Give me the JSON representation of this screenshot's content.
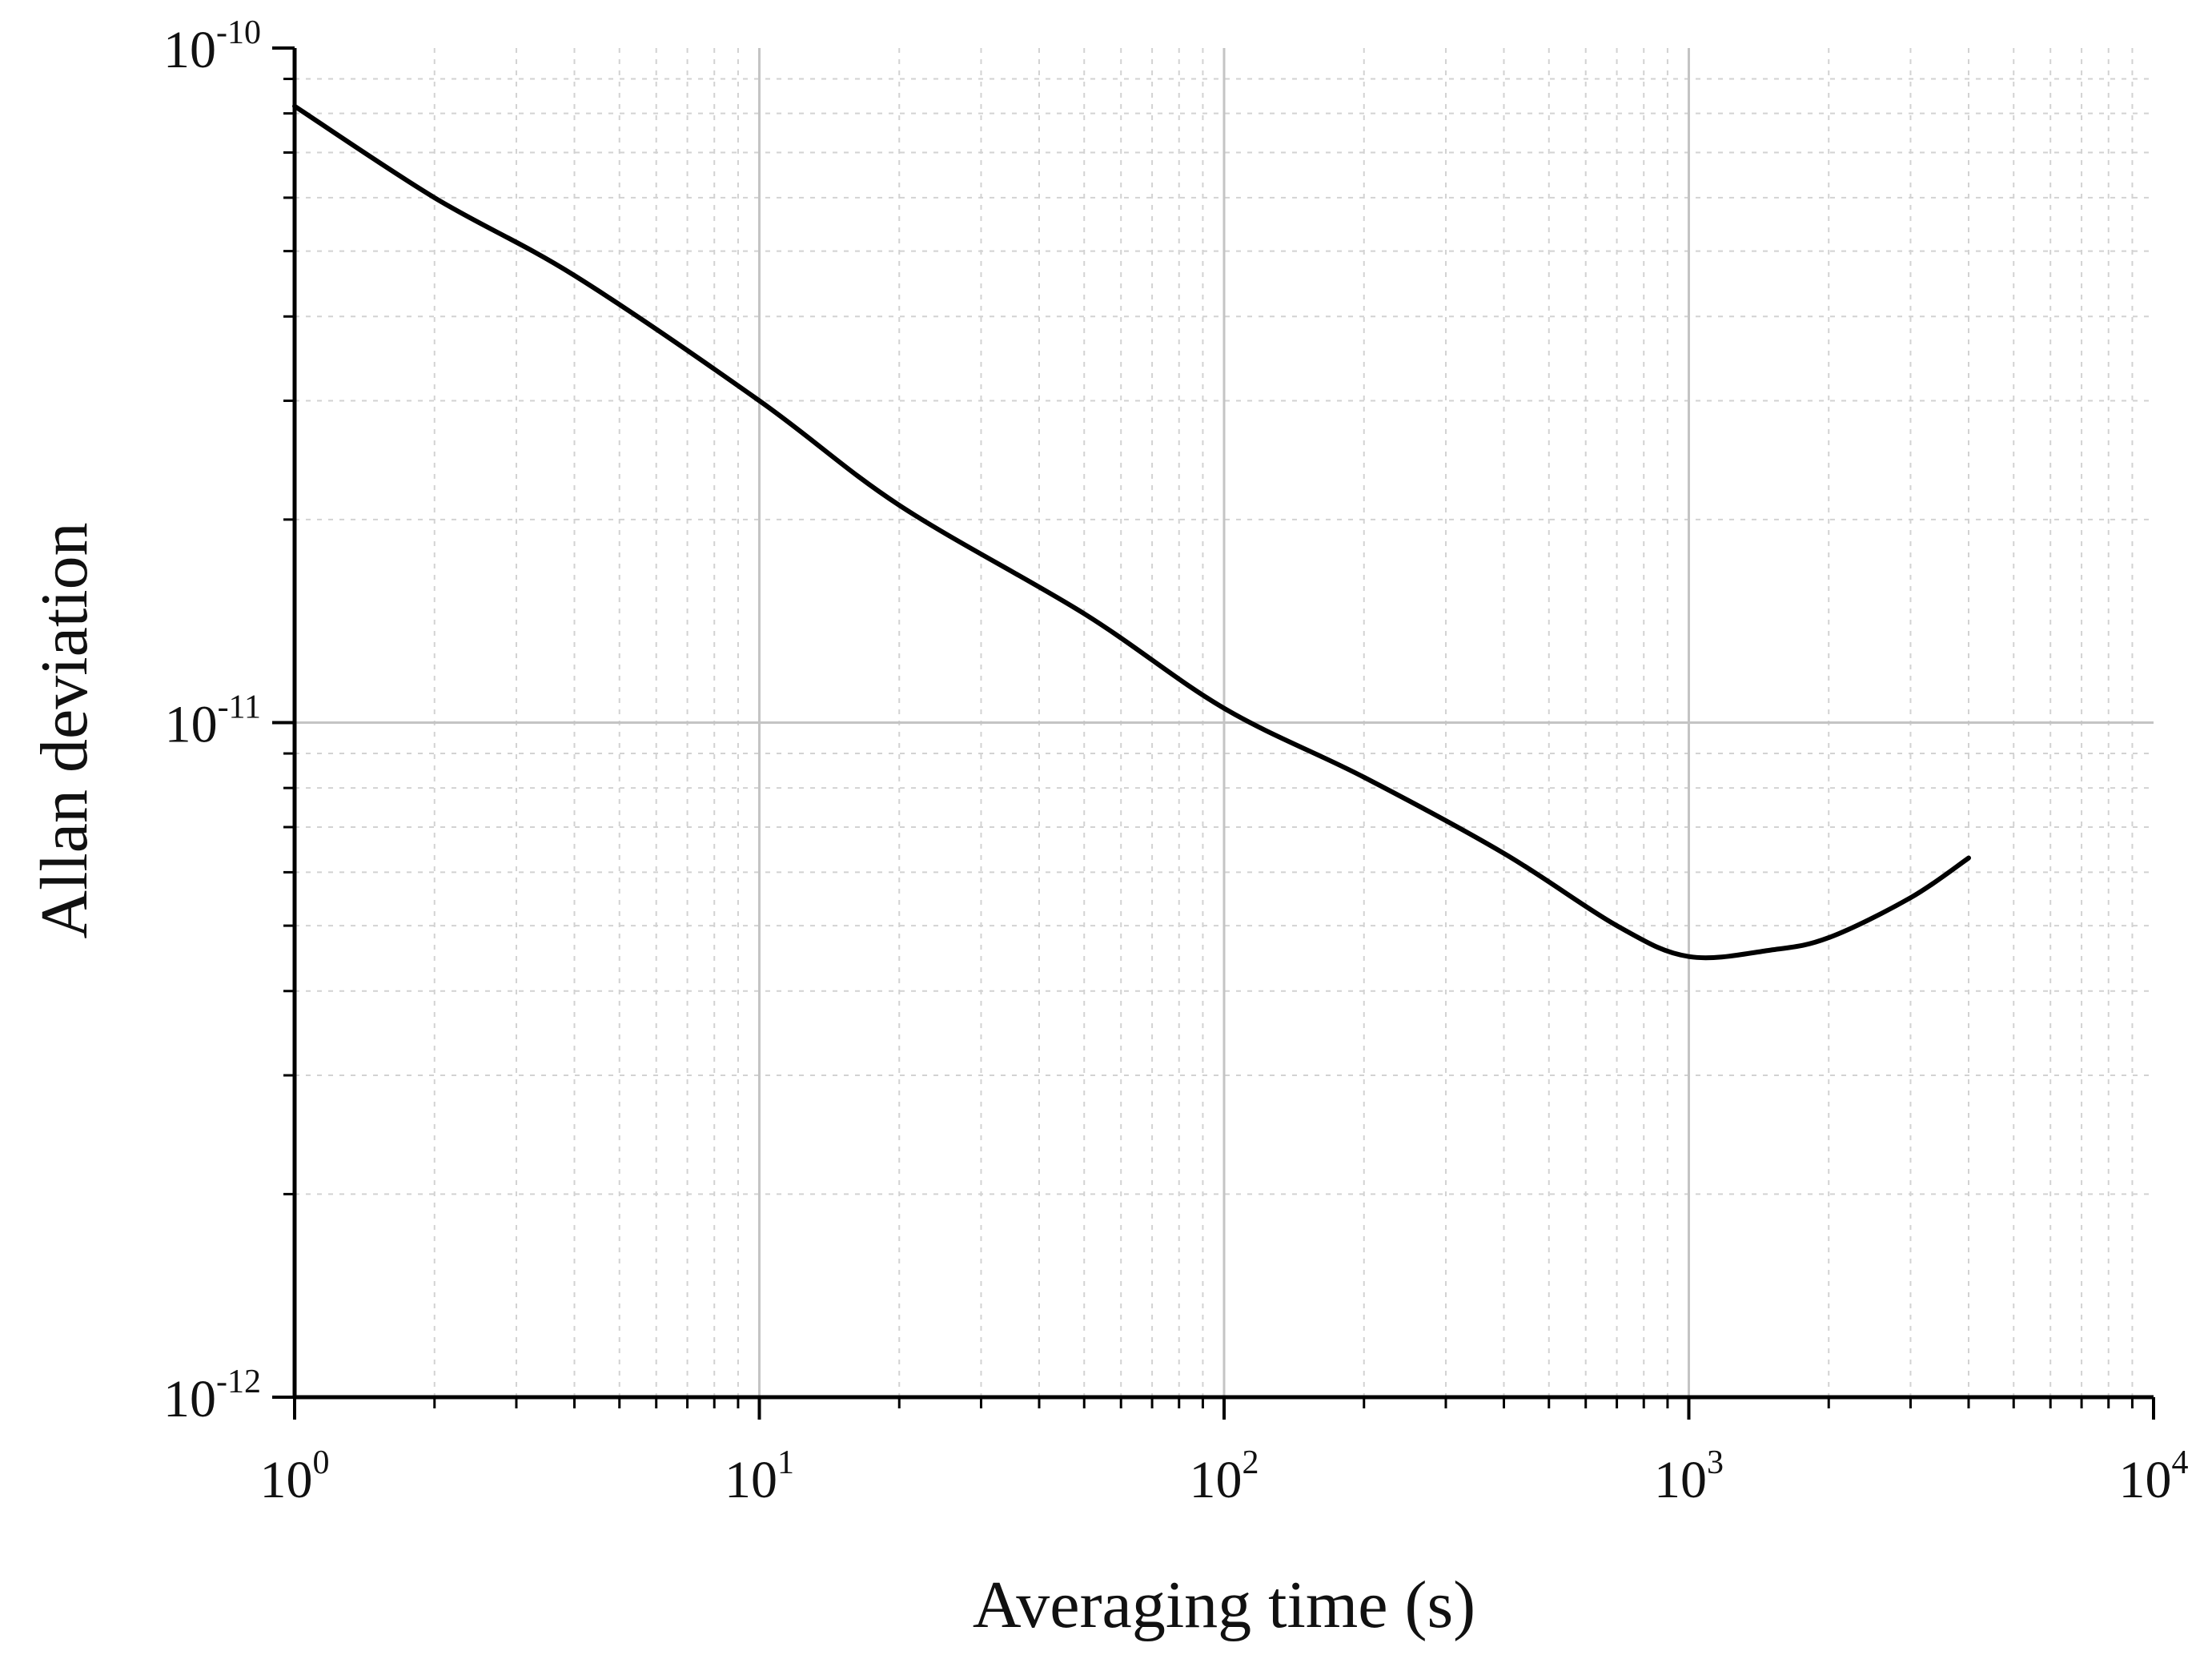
{
  "chart_data": {
    "type": "line",
    "title": "",
    "xlabel": "Averaging time (s)",
    "ylabel": "Allan deviation",
    "x_scale": "log",
    "y_scale": "log",
    "xlim": [
      1,
      10000
    ],
    "ylim": [
      1e-12,
      1e-10
    ],
    "grid": true,
    "legend": "none",
    "x_ticks": [
      {
        "base": "10",
        "exp": "0",
        "value": 1
      },
      {
        "base": "10",
        "exp": "1",
        "value": 10
      },
      {
        "base": "10",
        "exp": "2",
        "value": 100
      },
      {
        "base": "10",
        "exp": "3",
        "value": 1000
      },
      {
        "base": "10",
        "exp": "4",
        "value": 10000
      }
    ],
    "y_ticks": [
      {
        "base": "10",
        "exp": "-10",
        "value": 1e-10
      },
      {
        "base": "10",
        "exp": "-11",
        "value": 1e-11
      },
      {
        "base": "10",
        "exp": "-12",
        "value": 1e-12
      }
    ],
    "series": [
      {
        "name": "Allan deviation",
        "color": "#000000",
        "x": [
          1,
          2,
          4,
          10,
          20,
          50,
          100,
          200,
          400,
          700,
          1000,
          1500,
          2000,
          3000,
          4000
        ],
        "y": [
          8.2e-11,
          6e-11,
          4.6e-11,
          3e-11,
          2.1e-11,
          1.45e-11,
          1.05e-11,
          8.3e-12,
          6.4e-12,
          5e-12,
          4.5e-12,
          4.6e-12,
          4.8e-12,
          5.5e-12,
          6.3e-12
        ]
      }
    ]
  }
}
